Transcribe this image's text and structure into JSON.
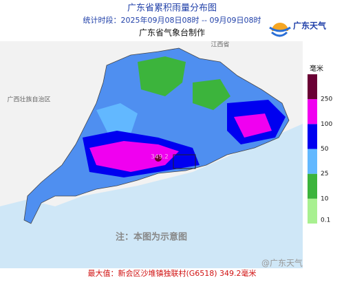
{
  "header": {
    "title": "广东省累积雨量分布图",
    "period": "统计时段：2025年09月08日08时 -- 09月09日08时",
    "producer": "广东省气象台制作",
    "logo": "广东天气"
  },
  "map_labels": {
    "jiangxi": "江西省",
    "guangxi": "广西壮族自治区",
    "max_point": "349.2"
  },
  "legend": {
    "unit": "毫米",
    "ticks": [
      0.1,
      10,
      25,
      50,
      100,
      250
    ],
    "colors": [
      "#a8f090",
      "#3cb43c",
      "#62b8ff",
      "#0000f0",
      "#f000f0",
      "#6a0034"
    ]
  },
  "note": "注：本图为示意图",
  "footer": {
    "max_value": "最大值：新会区沙堆镇独联村(G6518) 349.2毫米",
    "watermark": "@广东天气"
  }
}
